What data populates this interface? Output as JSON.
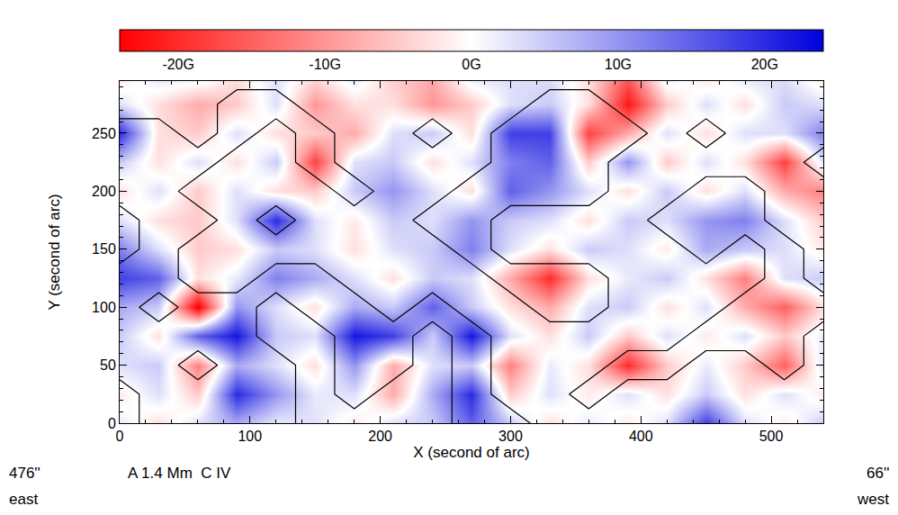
{
  "chart_data": {
    "type": "heatmap",
    "xlabel": "X (second of arc)",
    "ylabel": "Y (second of arc)",
    "annotations": [
      "A 1.4 Mm  C IV",
      "476''",
      "east",
      "66''",
      "west"
    ],
    "xlim": [
      0,
      540
    ],
    "ylim": [
      0,
      295
    ],
    "xticks": [
      0,
      100,
      200,
      300,
      400,
      500
    ],
    "yticks": [
      0,
      50,
      100,
      150,
      200,
      250
    ],
    "x": [
      0,
      30,
      60,
      90,
      120,
      150,
      180,
      210,
      240,
      270,
      300,
      330,
      360,
      390,
      420,
      450,
      480,
      510,
      540
    ],
    "y": [
      0,
      25,
      50,
      75,
      100,
      125,
      150,
      175,
      200,
      225,
      250,
      275,
      300
    ],
    "cells": [
      [
        2,
        -3,
        3,
        8,
        2,
        3,
        -2,
        3,
        5,
        15,
        5,
        -3,
        2,
        -2,
        3,
        18,
        3,
        -2,
        5
      ],
      [
        -2,
        3,
        -5,
        20,
        10,
        2,
        3,
        -8,
        8,
        20,
        -5,
        3,
        -2,
        3,
        -3,
        5,
        -3,
        3,
        -2
      ],
      [
        3,
        5,
        -12,
        8,
        3,
        -3,
        10,
        -8,
        3,
        5,
        -12,
        2,
        -3,
        -20,
        -5,
        2,
        -5,
        -15,
        3
      ],
      [
        5,
        -3,
        15,
        22,
        5,
        3,
        22,
        18,
        5,
        22,
        3,
        -3,
        5,
        -5,
        3,
        -2,
        3,
        -5,
        2
      ],
      [
        8,
        5,
        -25,
        10,
        3,
        -3,
        8,
        5,
        15,
        5,
        -3,
        -8,
        3,
        5,
        -3,
        3,
        -8,
        -15,
        -3
      ],
      [
        18,
        15,
        -3,
        2,
        12,
        8,
        3,
        -3,
        5,
        3,
        -8,
        -20,
        -3,
        2,
        5,
        -3,
        -12,
        3,
        5
      ],
      [
        12,
        3,
        -5,
        -3,
        5,
        3,
        -3,
        3,
        5,
        12,
        3,
        -3,
        5,
        3,
        -2,
        8,
        5,
        3,
        -2
      ],
      [
        3,
        -3,
        -5,
        3,
        20,
        3,
        -2,
        5,
        3,
        10,
        5,
        3,
        -3,
        5,
        3,
        10,
        12,
        3,
        -5
      ],
      [
        -3,
        3,
        -5,
        3,
        -3,
        -5,
        5,
        10,
        3,
        -3,
        15,
        10,
        3,
        -3,
        5,
        -3,
        3,
        -8,
        -12
      ],
      [
        5,
        -3,
        3,
        -3,
        5,
        -18,
        3,
        5,
        -3,
        3,
        12,
        15,
        -5,
        10,
        -5,
        3,
        -3,
        -18,
        3
      ],
      [
        20,
        -3,
        -5,
        3,
        -3,
        -5,
        -8,
        3,
        5,
        -3,
        18,
        18,
        -18,
        -8,
        3,
        -3,
        3,
        3,
        12
      ],
      [
        3,
        -3,
        -8,
        -5,
        3,
        -10,
        -3,
        -3,
        -10,
        -5,
        3,
        5,
        -3,
        -22,
        -5,
        3,
        -3,
        5,
        3
      ],
      [
        -3,
        3,
        3,
        -3,
        3,
        -3,
        3,
        -5,
        -8,
        3,
        3,
        3,
        -3,
        -15,
        3,
        -3,
        3,
        3,
        -3
      ]
    ],
    "colorbar": {
      "range": [
        -24,
        24
      ],
      "ticks": [
        {
          "value": -20,
          "label": "-20G"
        },
        {
          "value": -10,
          "label": "-10G"
        },
        {
          "value": 0,
          "label": "0G"
        },
        {
          "value": 10,
          "label": "10G"
        },
        {
          "value": 20,
          "label": "20G"
        }
      ]
    },
    "intensity_cells": [
      [
        0,
        1,
        1,
        1,
        1,
        0,
        0,
        0,
        0,
        1,
        1,
        0,
        0,
        0,
        0,
        0,
        0,
        0,
        0
      ],
      [
        0,
        1,
        1,
        1,
        1,
        0,
        1,
        0,
        0,
        1,
        0,
        0,
        1,
        0,
        0,
        0,
        0,
        0,
        0
      ],
      [
        1,
        1,
        0,
        1,
        1,
        0,
        1,
        1,
        0,
        1,
        0,
        0,
        0,
        1,
        1,
        0,
        0,
        1,
        0
      ],
      [
        1,
        1,
        1,
        1,
        0,
        0,
        1,
        1,
        0,
        1,
        0,
        0,
        0,
        0,
        0,
        1,
        1,
        1,
        0
      ],
      [
        1,
        0,
        1,
        1,
        0,
        1,
        1,
        0,
        1,
        0,
        0,
        1,
        1,
        0,
        0,
        0,
        1,
        1,
        1
      ],
      [
        1,
        1,
        0,
        0,
        1,
        1,
        0,
        0,
        0,
        0,
        1,
        1,
        1,
        0,
        0,
        0,
        0,
        1,
        0
      ],
      [
        0,
        1,
        0,
        0,
        0,
        0,
        0,
        0,
        0,
        1,
        0,
        0,
        0,
        0,
        0,
        1,
        0,
        1,
        0
      ],
      [
        0,
        1,
        1,
        0,
        1,
        0,
        0,
        0,
        1,
        1,
        0,
        0,
        0,
        0,
        1,
        1,
        1,
        0,
        0
      ],
      [
        1,
        1,
        0,
        0,
        0,
        0,
        1,
        0,
        0,
        1,
        1,
        1,
        1,
        0,
        0,
        1,
        1,
        0,
        0
      ],
      [
        1,
        1,
        1,
        0,
        0,
        1,
        0,
        0,
        0,
        0,
        1,
        1,
        1,
        0,
        0,
        0,
        0,
        0,
        1
      ],
      [
        1,
        1,
        0,
        1,
        0,
        1,
        0,
        0,
        1,
        0,
        1,
        1,
        1,
        1,
        0,
        1,
        0,
        0,
        0
      ],
      [
        0,
        0,
        0,
        1,
        1,
        0,
        0,
        0,
        0,
        0,
        0,
        1,
        1,
        0,
        0,
        0,
        0,
        0,
        0
      ],
      [
        0,
        0,
        0,
        0,
        0,
        0,
        0,
        0,
        0,
        0,
        0,
        0,
        0,
        0,
        0,
        0,
        0,
        0,
        0
      ]
    ],
    "intensity_contour_level": 0.5
  }
}
